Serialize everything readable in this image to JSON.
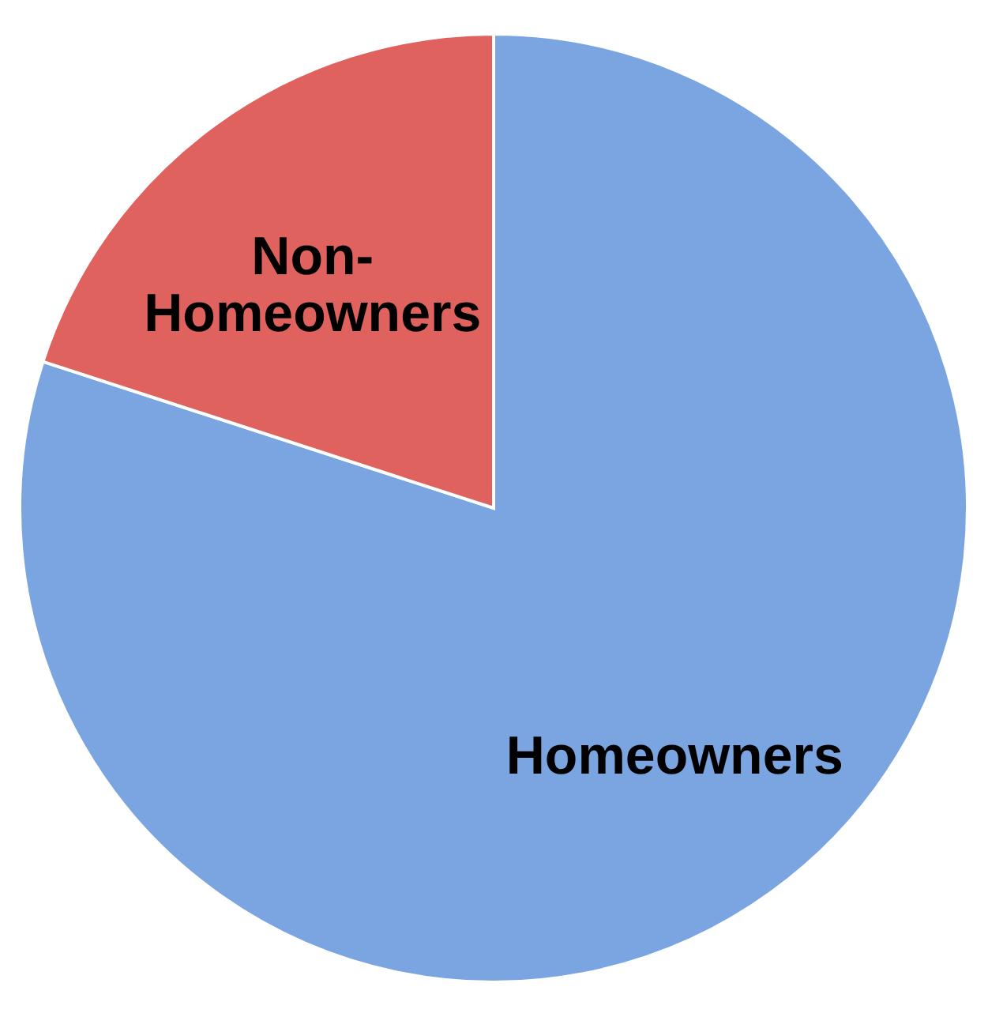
{
  "chart_data": {
    "type": "pie",
    "categories": [
      "Homeowners",
      "Non-Homeowners"
    ],
    "values": [
      80,
      20
    ],
    "colors": [
      "#7aa5e0",
      "#e0625e"
    ],
    "legend": false
  }
}
